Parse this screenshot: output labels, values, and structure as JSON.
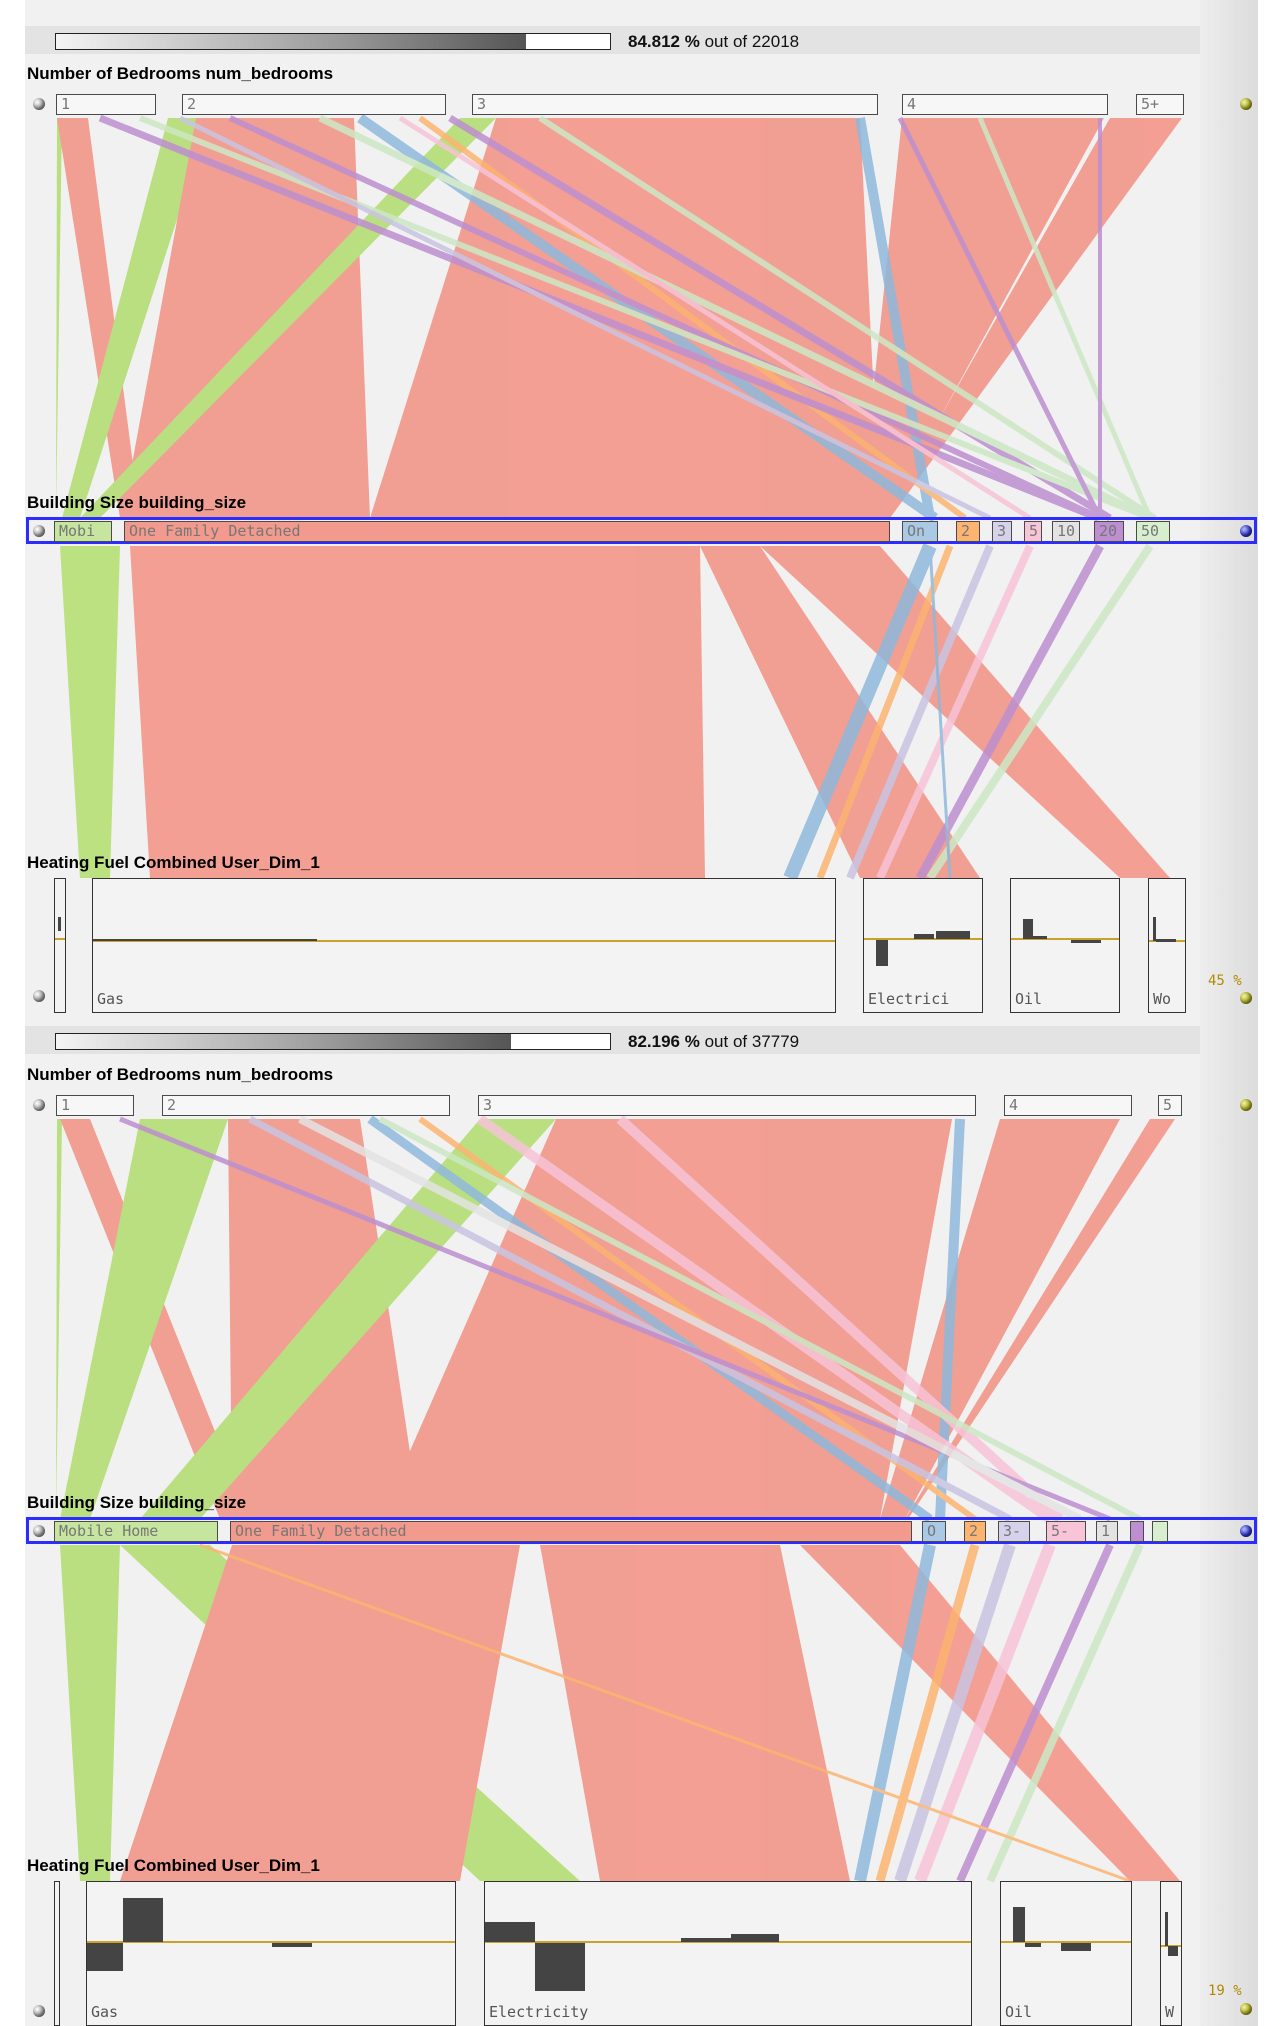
{
  "colors": {
    "salmon": "#f29a8e",
    "green": "#b7df7a",
    "blue": "#8fb9dc",
    "orange": "#fcb470",
    "lavender": "#c9c4e2",
    "pink": "#f7c4d8",
    "purple": "#bd8fd0",
    "mint": "#cce8c4",
    "selection_outline": "#2c2cff",
    "bar_baseline": "#c9a227"
  },
  "panels": [
    {
      "progress_fraction": 0.84812,
      "percent_value": "84.812",
      "percent_sign": "%",
      "out_of_text": "out of 22018",
      "dim1_title": "Number of Bedrooms num_bedrooms",
      "dim1_categories": [
        "1",
        "2",
        "3",
        "4",
        "5+"
      ],
      "dim2_title": "Building Size building_size",
      "dim2_categories": [
        "Mobi",
        "One Family Detached",
        "On",
        "2",
        "3",
        "5",
        "10",
        "20",
        "50"
      ],
      "dim3_title": "Heating Fuel Combined User_Dim_1",
      "dim3_categories": [
        "",
        "Gas",
        "Electrici",
        "Oil",
        "Wo"
      ],
      "fuel_percent": "45 %"
    },
    {
      "progress_fraction": 0.82196,
      "percent_value": "82.196",
      "percent_sign": "%",
      "out_of_text": "out of 37779",
      "dim1_title": "Number of Bedrooms num_bedrooms",
      "dim1_categories": [
        "1",
        "2",
        "3",
        "4",
        "5"
      ],
      "dim2_title": "Building Size building_size",
      "dim2_categories": [
        "Mobile Home",
        "One Family Detached",
        "O",
        "2",
        "3-",
        "5-",
        "1",
        "",
        ""
      ],
      "dim3_title": "Heating Fuel Combined User_Dim_1",
      "dim3_categories": [
        "",
        "Gas",
        "Electricity",
        "Oil",
        "W"
      ],
      "fuel_percent": "19 %"
    }
  ]
}
